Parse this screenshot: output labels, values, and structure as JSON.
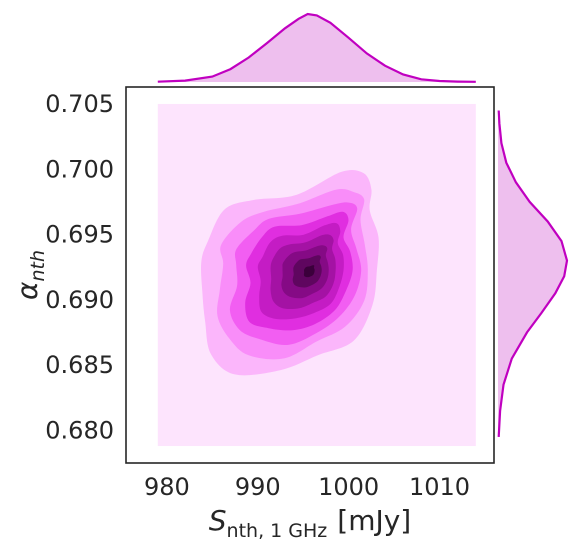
{
  "chart_data": {
    "type": "kde-joint",
    "xlabel": "S_nth,1 GHz [mJy]",
    "xlabel_parts": {
      "sym": "S",
      "sub": "nth, 1 GHz",
      "unit": "[mJy]"
    },
    "ylabel": "α_nth",
    "ylabel_parts": {
      "sym": "α",
      "sub": "nth"
    },
    "xlim": [
      975.5,
      1016
    ],
    "ylim": [
      0.6775,
      0.7063
    ],
    "x_ticks": [
      980,
      990,
      1000,
      1010
    ],
    "x_tick_labels": [
      "980",
      "990",
      "1000",
      "1010"
    ],
    "y_ticks": [
      0.68,
      0.685,
      0.69,
      0.695,
      0.7,
      0.705
    ],
    "y_tick_labels": [
      "0.680",
      "0.685",
      "0.690",
      "0.695",
      "0.700",
      "0.705"
    ],
    "grid": false,
    "colors": {
      "base": "#fde4fd",
      "levels": [
        "#fbb6fb",
        "#f98df9",
        "#f25ef2",
        "#e02ee0",
        "#c41cc4",
        "#a412a4",
        "#850a85",
        "#5f065f",
        "#3b003b"
      ],
      "marginal_line": "#c000c0",
      "marginal_fill": "#eebfee"
    },
    "kde_support": {
      "x": [
        979,
        1014
      ],
      "y": [
        0.6788,
        0.705
      ]
    },
    "joint_peak": {
      "x": 995.8,
      "y": 0.6922
    },
    "marginal_x": {
      "x": [
        979,
        982,
        985,
        987,
        989,
        991,
        993,
        994.5,
        995.5,
        996.5,
        998,
        1000,
        1002,
        1004,
        1006,
        1008,
        1010,
        1012,
        1014
      ],
      "density": [
        0.005,
        0.02,
        0.08,
        0.19,
        0.36,
        0.57,
        0.79,
        0.93,
        1.0,
        0.98,
        0.87,
        0.65,
        0.42,
        0.24,
        0.11,
        0.04,
        0.015,
        0.006,
        0.003
      ]
    },
    "marginal_y": {
      "y": [
        0.6795,
        0.6815,
        0.6835,
        0.6855,
        0.6875,
        0.689,
        0.6905,
        0.6918,
        0.693,
        0.6945,
        0.696,
        0.6975,
        0.699,
        0.7005,
        0.702,
        0.7035,
        0.7045
      ],
      "density": [
        0.01,
        0.03,
        0.08,
        0.2,
        0.42,
        0.63,
        0.83,
        0.96,
        1.0,
        0.92,
        0.72,
        0.46,
        0.26,
        0.12,
        0.05,
        0.02,
        0.01
      ]
    }
  }
}
